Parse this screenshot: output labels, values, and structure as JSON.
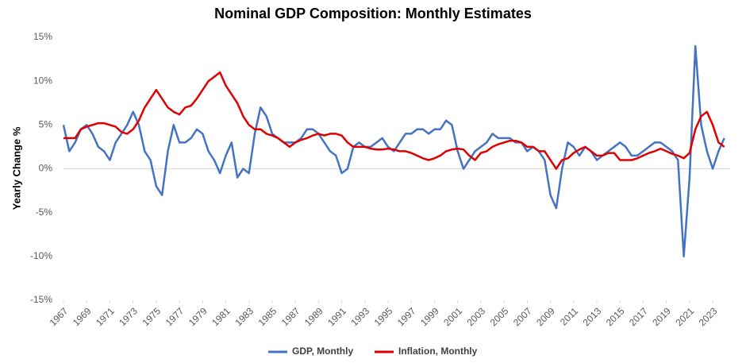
{
  "chart_data": {
    "type": "line",
    "title": "Nominal GDP Composition: Monthly Estimates",
    "y_label": "Yearly Change %",
    "x": [
      1967,
      1967.5,
      1968,
      1968.5,
      1969,
      1969.5,
      1970,
      1970.5,
      1971,
      1971.5,
      1972,
      1972.5,
      1973,
      1973.5,
      1974,
      1974.5,
      1975,
      1975.5,
      1976,
      1976.5,
      1977,
      1977.5,
      1978,
      1978.5,
      1979,
      1979.5,
      1980,
      1980.5,
      1981,
      1981.5,
      1982,
      1982.5,
      1983,
      1983.5,
      1984,
      1984.5,
      1985,
      1985.5,
      1986,
      1986.5,
      1987,
      1987.5,
      1988,
      1988.5,
      1989,
      1989.5,
      1990,
      1990.5,
      1991,
      1991.5,
      1992,
      1992.5,
      1993,
      1993.5,
      1994,
      1994.5,
      1995,
      1995.5,
      1996,
      1996.5,
      1997,
      1997.5,
      1998,
      1998.5,
      1999,
      1999.5,
      2000,
      2000.5,
      2001,
      2001.5,
      2002,
      2002.5,
      2003,
      2003.5,
      2004,
      2004.5,
      2005,
      2005.5,
      2006,
      2006.5,
      2007,
      2007.5,
      2008,
      2008.5,
      2009,
      2009.5,
      2010,
      2010.5,
      2011,
      2011.5,
      2012,
      2012.5,
      2013,
      2013.5,
      2014,
      2014.5,
      2015,
      2015.5,
      2016,
      2016.5,
      2017,
      2017.5,
      2018,
      2018.5,
      2019,
      2019.5,
      2020,
      2020.5,
      2021,
      2021.5,
      2022,
      2022.5,
      2023,
      2023.5,
      2024
    ],
    "series": [
      {
        "name": "GDP, Monthly",
        "color": "#4472c4",
        "values": [
          5,
          2,
          3,
          4.5,
          5,
          4,
          2.5,
          2,
          1,
          3,
          4,
          5,
          6.5,
          5,
          2,
          1,
          -2,
          -3,
          2,
          5,
          3,
          3,
          3.5,
          4.5,
          4,
          2,
          1,
          -0.5,
          1.5,
          3,
          -1,
          0,
          -0.5,
          4,
          7,
          6,
          4,
          3.5,
          3,
          3,
          3,
          3.5,
          4.5,
          4.5,
          4,
          3,
          2,
          1.5,
          -0.5,
          0,
          2.5,
          3,
          2.5,
          2.5,
          3,
          3.5,
          2.5,
          2,
          3,
          4,
          4,
          4.5,
          4.5,
          4,
          4.5,
          4.5,
          5.5,
          5,
          2,
          0,
          1,
          2,
          2.5,
          3,
          4,
          3.5,
          3.5,
          3.5,
          3,
          3,
          2,
          2.5,
          2,
          1,
          -3,
          -4.5,
          0,
          3,
          2.5,
          1.5,
          2.5,
          2,
          1,
          1.5,
          2,
          2.5,
          3,
          2.5,
          1.5,
          1.5,
          2,
          2.5,
          3,
          3,
          2.5,
          2,
          1,
          -10,
          -1,
          14,
          5,
          2,
          0,
          2,
          3.5
        ]
      },
      {
        "name": "Inflation, Monthly",
        "color": "#e00000",
        "values": [
          3.5,
          3.5,
          3.5,
          4.5,
          4.8,
          5,
          5.2,
          5.2,
          5,
          4.8,
          4.2,
          4,
          4.5,
          5.5,
          7,
          8,
          9,
          8,
          7,
          6.5,
          6.2,
          7,
          7.2,
          8,
          9,
          10,
          10.5,
          11,
          9.5,
          8.5,
          7.5,
          6,
          5,
          4.5,
          4.5,
          4,
          3.8,
          3.5,
          3,
          2.5,
          3,
          3.3,
          3.5,
          3.8,
          4,
          3.8,
          4,
          4,
          3.8,
          3,
          2.5,
          2.5,
          2.5,
          2.3,
          2.2,
          2.2,
          2.3,
          2.2,
          2,
          2,
          1.8,
          1.5,
          1.2,
          1,
          1.2,
          1.5,
          2,
          2.2,
          2.3,
          2.2,
          1.5,
          1,
          1.8,
          2,
          2.5,
          2.8,
          3,
          3.2,
          3.2,
          3,
          2.5,
          2.5,
          2,
          2,
          1,
          0,
          1,
          1.2,
          1.8,
          2.2,
          2.5,
          2,
          1.5,
          1.5,
          1.8,
          1.8,
          1,
          1,
          1,
          1.2,
          1.5,
          1.8,
          2,
          2.3,
          2,
          1.7,
          1.5,
          1.2,
          1.8,
          4.5,
          6,
          6.5,
          5,
          3,
          2.5
        ]
      }
    ],
    "xlim": [
      1967,
      2024.5
    ],
    "xticks": [
      1967,
      1969,
      1971,
      1973,
      1975,
      1977,
      1979,
      1981,
      1983,
      1985,
      1987,
      1989,
      1991,
      1993,
      1995,
      1997,
      1999,
      2001,
      2003,
      2005,
      2007,
      2009,
      2011,
      2013,
      2015,
      2017,
      2019,
      2021,
      2023
    ],
    "ylim": [
      -15,
      15
    ],
    "yticks": [
      {
        "value": -15,
        "label": "-15%"
      },
      {
        "value": -10,
        "label": "-10%"
      },
      {
        "value": -5,
        "label": "-5%"
      },
      {
        "value": 0,
        "label": "0%"
      },
      {
        "value": 5,
        "label": "5%"
      },
      {
        "value": 10,
        "label": "10%"
      },
      {
        "value": 15,
        "label": "15%"
      }
    ],
    "legend": "bottom"
  }
}
